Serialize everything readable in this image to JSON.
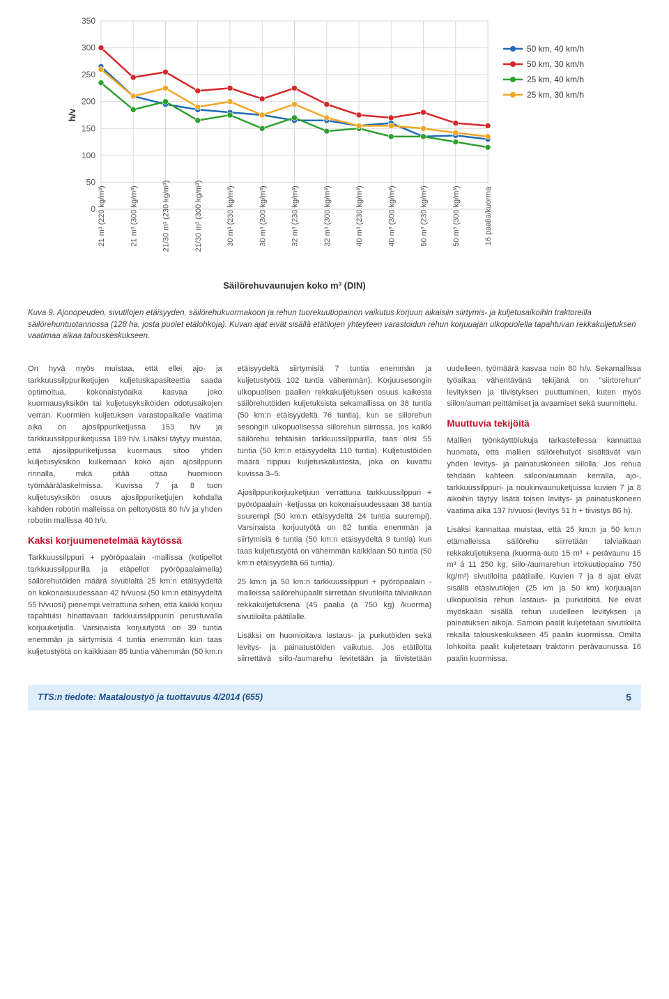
{
  "chart": {
    "type": "line",
    "y_axis": {
      "label": "h/v",
      "min": 0,
      "max": 350,
      "step": 50
    },
    "x_label": "Säilörehuvaunujen koko m³ (DIN)",
    "background_color": "#ffffff",
    "grid_color": "#d9d9d9",
    "categories": [
      "21 m³ (220 kg/m³)",
      "21 m³ (300 kg/m³)",
      "21/30 m³ (230 kg/m³)",
      "21/30 m³ (300 kg/m³)",
      "30 m³ (230 kg/m³)",
      "30 m³ (300 kg/m³)",
      "32 m³ (230 kg/m³)",
      "32 m³ (300 kg/m³)",
      "40 m³ (230 kg/m³)",
      "40 m³ (300 kg/m³)",
      "50 m³ (230 kg/m³)",
      "50 m³ (300 kg/m³)",
      "16 paalia/kuorma"
    ],
    "series": [
      {
        "name": "50 km, 40 km/h",
        "color": "#1f6bb8",
        "marker": "circle",
        "values": [
          265,
          210,
          195,
          185,
          180,
          175,
          165,
          165,
          155,
          160,
          135,
          137,
          130
        ]
      },
      {
        "name": "50 km, 30 km/h",
        "color": "#d62728",
        "marker": "circle",
        "values": [
          300,
          245,
          255,
          220,
          225,
          205,
          225,
          195,
          175,
          170,
          180,
          160,
          155
        ]
      },
      {
        "name": "25 km, 40 km/h",
        "color": "#2ca02c",
        "marker": "circle",
        "values": [
          235,
          185,
          200,
          165,
          175,
          150,
          170,
          145,
          150,
          135,
          135,
          125,
          115
        ]
      },
      {
        "name": "25 km, 30 km/h",
        "color": "#f5a623",
        "marker": "circle",
        "values": [
          260,
          210,
          225,
          190,
          200,
          175,
          195,
          170,
          155,
          155,
          150,
          142,
          135
        ]
      }
    ],
    "legend_position": "right",
    "line_width": 2.5,
    "marker_radius": 4
  },
  "caption": {
    "lead": "Kuva 9.",
    "text": " Ajonopeuden, sivutilojen etäisyyden, säilörehukuormakoon ja rehun tuorekuutiopainon vaikutus korjuun aikaisiin siirtymis- ja kuljetusaikoihin traktoreilla säilörehuntuotannossa (128 ha, josta puolet etälohkoja). Kuvan ajat eivät sisällä etätilojen yhteyteen varastoidun rehun korjuuajan ulkopuolella tapahtuvan rekkakuljetuksen vaatimaa aikaa talouskeskukseen."
  },
  "body": {
    "p1": "On hyvä myös muistaa, että ellei ajo- ja tarkkuussilppuriketjujen kuljetuskapasiteettia saada optimoitua, kokonaistyöaika kasvaa joko kuormausyksikön tai kuljetusyksiköiden odotusaikojen verran. Kuormien kuljetuksen varastopaikalle vaatima aika on ajosilppuriketjussa 153 h/v ja tarkkuussilppuriketjussa 189 h/v. Lisäksi täytyy muistaa, että ajosilppuriketjussa kuormaus sitoo yhden kuljetusyksikön kulkemaan koko ajan ajosilppurin rinnalla, mikä pitää ottaa huomioon työmäärälaskelmissa. Kuvissa 7 ja 8 tuon kuljetusyksikön osuus ajosilppuriketjujen kohdalla kahden robotin malleissa on peltotyöstä 80 h/v ja yhden robotin mallissa 40 h/v.",
    "h1": "Kaksi korjuumenetelmää käytössä",
    "p2": "Tarkkuussilppuri + pyöröpaalain -mallissa (kotipellot tarkkuussilppurilla ja etäpellot pyöröpaalaimella) säilörehutöiden määrä sivutilalta 25 km:n etäisyydeltä on kokonaisuudessaan 42 h/vuosi (50 km:n etäisyydeltä 55 h/vuosi) pienempi verrattuna siihen, että kaikki korjuu tapahtuisi hinattavaan tarkkuussilppuriin perustuvalla korjuuketjulla. Varsinaista korjuutyötä on 39 tuntia enemmän ja siirtymisiä 4 tuntia enemmän kun taas kuljetustyötä on kaikkiaan 85 tuntia vähemmän (50 km:n etäisyydeltä siirtymisiä 7 tuntia enemmän ja kuljetustyötä 102 tuntia vähemmän). Korjuusesongin ulkopuolisen paalien rekkakuljetuksen osuus kaikesta säilörehutöiden kuljetuksista sekamallissa on 38 tuntia (50 km:n etäisyydeltä 76 tuntia), kun se siilorehun sesongin ulkopuolisessa siilorehun siirrossa, jos kaikki säilörehu tehtäisiin tarkkuussilppurilla, taas olisi 55 tuntia (50 km:n etäisyydeltä 110 tuntia). Kuljetustöiden määrä riippuu kuljetuskalustosta, joka on kuvattu kuvissa 3–5.",
    "p3": "Ajosilppurikorjuuketjuun verrattuna tarkkuussilppuri + pyöröpaalain -ketjussa on kokonaisuudessaan 38 tuntia suurempi (50 km:n etäisyydeltä 24 tuntia suurempi). Varsinaista korjuutyötä on 82 tuntia enemmän ja siirtymisiä 6 tuntia (50 km:n etäisyydeltä 9 tuntia) kun taas kuljetustyötä on vähemmän kaikkiaan 50 tuntia (50 km:n etäisyydeltä 66 tuntia).",
    "p4": "25 km:n ja 50 km:n tarkkuussilppuri + pyöröpaalain -malleissa säilörehupaalit siirretään sivutiloilta talviaikaan rekkakuljetuksena (45 paalia (á 750 kg) /kuorma) sivutiloilta päätilalle.",
    "p5": "Lisäksi on huomioitava lastaus- ja purkutöiden sekä levitys- ja painatustöiden vaikutus. Jos etätilolta siirrettävä siilo-/aumarehu levitetään ja tiivistetään uudelleen, työmäärä kasvaa noin 80 h/v. Sekamallissa työaikaa vähentävänä tekijänä on \"siirtorehun\" levityksen ja tiivistyksen puuttuminen, kuten myös siilon/auman peittämiset ja avaamiset sekä suunnittelu.",
    "h2": "Muuttuvia tekijöitä",
    "p6": "Mallien työnkäyttölukuja tarkastellessa kannattaa huomata, että mallien säilörehutyöt sisältävät vain yhden levitys- ja painatuskoneen siilolla. Jos rehua tehdään kahteen siiloon/aumaan kerralla, ajo-, tarkkuussilppuri- ja noukinvaunuketjuissa kuvien 7 ja 8 aikoihin täytyy lisätä toisen levitys- ja painatuskoneen vaatima aika 137 h/vuosi (levitys 51 h + tiivistys 86 h).",
    "p7": "Lisäksi kannattaa muistaa, että 25 km:n ja 50 km:n etämalleissa säilörehu siirretään talviaikaan rekkakuljetuksena (kuorma-auto 15 m³ + perävaunu 15 m³ á 11 250 kg; siilo-/aumarehun irtokuutiopaino 750 kg/m³) sivutiloilta päätilalle. Kuvien 7 ja 8 ajat eivät sisällä etäsivutilojen (25 km ja 50 km) korjuuajan ulkopuolisia rehun lastaus- ja purkutöitä. Ne eivät myöskään sisällä rehun uudelleen levityksen ja painatuksen aikoja. Samoin paalit kuljetetaan sivutiloilta rekalla talouskeskukseen 45 paalin kuormissa. Omilta lohkoilta paalit kuljetetaan traktorin perävaunussa 16 paalin kuormissa."
  },
  "footer": {
    "text": "TTS:n tiedote: Maataloustyö ja tuottavuus 4/2014 (655)",
    "page": "5"
  }
}
